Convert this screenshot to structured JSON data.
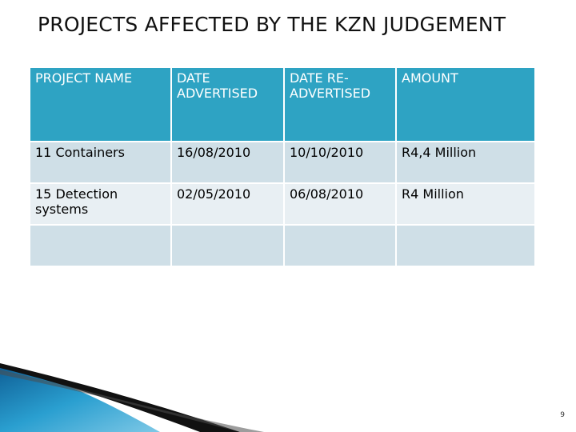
{
  "slide": {
    "title": "PROJECTS AFFECTED BY THE KZN JUDGEMENT",
    "page_number": "9"
  },
  "table": {
    "headers": [
      "PROJECT NAME",
      "DATE ADVERTISED",
      "DATE RE-ADVERTISED",
      "AMOUNT"
    ],
    "rows": [
      [
        "11 Containers",
        "16/08/2010",
        "10/10/2010",
        "R4,4 Million"
      ],
      [
        "15 Detection systems",
        "02/05/2010",
        "06/08/2010",
        "R4 Million"
      ],
      [
        "",
        "",
        "",
        ""
      ]
    ]
  },
  "colors": {
    "header": "#2ea3c3",
    "row_dark": "#cfdfe7",
    "row_light": "#e8eff3",
    "accent_blue": "#1a7fb8"
  }
}
